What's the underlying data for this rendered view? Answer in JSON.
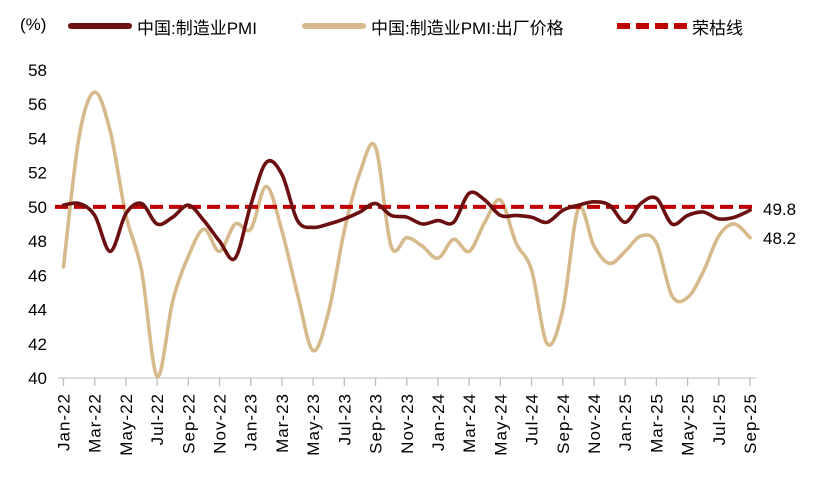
{
  "unit_label": "(%)",
  "legend": {
    "items": [
      {
        "label": "中国:制造业PMI",
        "color": "#6b0f10",
        "style": "solid"
      },
      {
        "label": "中国:制造业PMI:出厂价格",
        "color": "#d6ba8c",
        "style": "solid"
      },
      {
        "label": "荣枯线",
        "color": "#c00000",
        "style": "dashed"
      }
    ]
  },
  "end_labels": {
    "pmi": "49.8",
    "price": "48.2"
  },
  "chart_data": {
    "type": "line",
    "title": "",
    "xlabel": "",
    "ylabel": "(%)",
    "ylim": [
      40,
      58
    ],
    "y_ticks": [
      58,
      56,
      54,
      52,
      50,
      48,
      46,
      44,
      42,
      40
    ],
    "grid": false,
    "legend_position": "top",
    "smoothed": true,
    "x": [
      "Jan-22",
      "Feb-22",
      "Mar-22",
      "Apr-22",
      "May-22",
      "Jun-22",
      "Jul-22",
      "Aug-22",
      "Sep-22",
      "Oct-22",
      "Nov-22",
      "Dec-22",
      "Jan-23",
      "Feb-23",
      "Mar-23",
      "Apr-23",
      "May-23",
      "Jun-23",
      "Jul-23",
      "Aug-23",
      "Sep-23",
      "Oct-23",
      "Nov-23",
      "Dec-23",
      "Jan-24",
      "Feb-24",
      "Mar-24",
      "Apr-24",
      "May-24",
      "Jun-24",
      "Jul-24",
      "Aug-24",
      "Sep-24",
      "Oct-24",
      "Nov-24",
      "Dec-24",
      "Jan-25",
      "Feb-25",
      "Mar-25",
      "Apr-25",
      "May-25",
      "Jun-25",
      "Jul-25",
      "Aug-25",
      "Sep-25"
    ],
    "x_tick_labels": [
      "Jan-22",
      "Mar-22",
      "May-22",
      "Jul-22",
      "Sep-22",
      "Nov-22",
      "Jan-23",
      "Mar-23",
      "May-23",
      "Jul-23",
      "Sep-23",
      "Nov-23",
      "Jan-24",
      "Mar-24",
      "May-24",
      "Jul-24",
      "Sep-24",
      "Nov-24",
      "Jan-25",
      "Mar-25",
      "May-25",
      "Jul-25",
      "Sep-25"
    ],
    "series": [
      {
        "name": "中国:制造业PMI",
        "color": "#6b0f10",
        "values": [
          50.1,
          50.2,
          49.5,
          47.4,
          49.6,
          50.2,
          49.0,
          49.4,
          50.1,
          49.2,
          48.0,
          47.0,
          50.1,
          52.6,
          51.9,
          49.2,
          48.8,
          49.0,
          49.3,
          49.7,
          50.2,
          49.5,
          49.4,
          49.0,
          49.2,
          49.1,
          50.8,
          50.4,
          49.5,
          49.5,
          49.4,
          49.1,
          49.8,
          50.1,
          50.3,
          50.1,
          49.1,
          50.2,
          50.5,
          49.0,
          49.5,
          49.7,
          49.3,
          49.4,
          49.8
        ]
      },
      {
        "name": "中国:制造业PMI:出厂价格",
        "color": "#d6ba8c",
        "values": [
          46.5,
          54.1,
          56.7,
          54.4,
          49.5,
          46.3,
          40.1,
          44.5,
          47.1,
          48.7,
          47.4,
          49.0,
          48.7,
          51.2,
          48.6,
          44.9,
          41.6,
          43.9,
          48.6,
          52.0,
          53.5,
          47.7,
          48.2,
          47.7,
          47.0,
          48.1,
          47.4,
          49.1,
          50.4,
          47.9,
          46.3,
          42.0,
          44.0,
          49.9,
          47.7,
          46.7,
          47.4,
          48.3,
          47.9,
          44.8,
          44.7,
          46.2,
          48.3,
          49.0,
          48.2
        ]
      }
    ],
    "reference_line": {
      "name": "荣枯线",
      "value": 50,
      "color": "#c00000",
      "style": "dashed"
    },
    "end_value_labels": [
      {
        "series": "中国:制造业PMI",
        "value": 49.8
      },
      {
        "series": "中国:制造业PMI:出厂价格",
        "value": 48.2
      }
    ]
  }
}
